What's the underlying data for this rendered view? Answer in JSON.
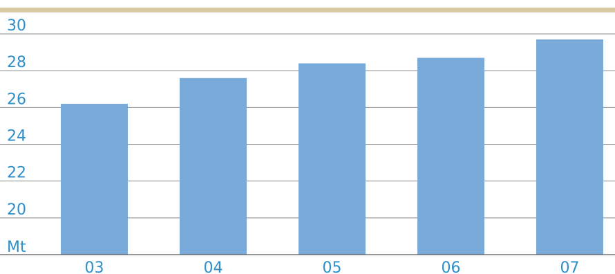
{
  "chart_data": {
    "type": "bar",
    "categories": [
      "03",
      "04",
      "05",
      "06",
      "07"
    ],
    "values": [
      26.2,
      27.6,
      28.4,
      28.7,
      29.7
    ],
    "unit_label": "Mt",
    "yticks": [
      "20",
      "22",
      "24",
      "26",
      "28",
      "30"
    ],
    "ylim": [
      18,
      30
    ],
    "grid": true,
    "title": "",
    "xlabel": "",
    "ylabel": ""
  },
  "colors": {
    "bar": "#7aaada",
    "accent_band": "#d9c9a3",
    "tick_text": "#2e8fc8",
    "grid": "#8a8a8a",
    "baseline": "#5a5a5a"
  }
}
